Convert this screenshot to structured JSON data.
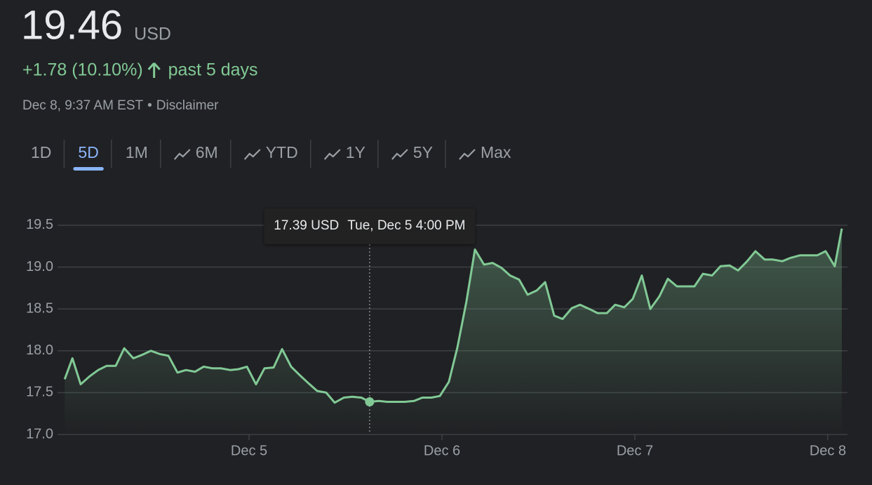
{
  "header": {
    "price": "19.46",
    "currency": "USD",
    "change": "+1.78 (10.10%)",
    "period": "past 5 days",
    "timestamp": "Dec 8, 9:37 AM EST",
    "separator": "•",
    "disclaimer": "Disclaimer"
  },
  "tabs": [
    {
      "label": "1D",
      "icon": false
    },
    {
      "label": "5D",
      "icon": false
    },
    {
      "label": "1M",
      "icon": false
    },
    {
      "label": "6M",
      "icon": true
    },
    {
      "label": "YTD",
      "icon": true
    },
    {
      "label": "1Y",
      "icon": true
    },
    {
      "label": "5Y",
      "icon": true
    },
    {
      "label": "Max",
      "icon": true
    }
  ],
  "active_tab": 1,
  "chart_data": {
    "type": "line",
    "color": "#81c995",
    "grid": true,
    "x": [
      4.044,
      4.084,
      4.127,
      4.171,
      4.218,
      4.262,
      4.309,
      4.353,
      4.4,
      4.444,
      4.491,
      4.538,
      4.582,
      4.629,
      4.673,
      4.72,
      4.764,
      4.811,
      4.855,
      4.902,
      4.945,
      4.989,
      5.036,
      5.08,
      5.127,
      5.171,
      5.218,
      5.262,
      5.309,
      5.353,
      5.4,
      5.444,
      5.491,
      5.535,
      5.582,
      5.625,
      5.673,
      5.716,
      5.764,
      5.807,
      5.855,
      5.898,
      5.945,
      5.989,
      6.036,
      6.08,
      6.127,
      6.171,
      6.218,
      6.262,
      6.309,
      6.353,
      6.4,
      6.444,
      6.491,
      6.535,
      6.582,
      6.625,
      6.673,
      6.716,
      6.764,
      6.807,
      6.855,
      6.898,
      6.945,
      6.989,
      7.036,
      7.08,
      7.127,
      7.171,
      7.218,
      7.262,
      7.309,
      7.353,
      7.4,
      7.444,
      7.491,
      7.535,
      7.582,
      7.625,
      7.673,
      7.716,
      7.764,
      7.807,
      7.855,
      7.898,
      7.945,
      7.989,
      8.036,
      8.073
    ],
    "values": [
      17.66,
      17.91,
      17.6,
      17.69,
      17.77,
      17.82,
      17.82,
      18.03,
      17.91,
      17.95,
      18.0,
      17.96,
      17.94,
      17.74,
      17.77,
      17.75,
      17.81,
      17.79,
      17.79,
      17.77,
      17.78,
      17.81,
      17.6,
      17.79,
      17.8,
      18.02,
      17.81,
      17.71,
      17.61,
      17.52,
      17.5,
      17.38,
      17.44,
      17.45,
      17.44,
      17.39,
      17.4,
      17.39,
      17.39,
      17.39,
      17.4,
      17.44,
      17.44,
      17.46,
      17.63,
      18.04,
      18.59,
      19.21,
      19.03,
      19.05,
      18.99,
      18.9,
      18.85,
      18.67,
      18.72,
      18.82,
      18.42,
      18.38,
      18.51,
      18.55,
      18.5,
      18.45,
      18.45,
      18.55,
      18.52,
      18.62,
      18.9,
      18.5,
      18.65,
      18.86,
      18.77,
      18.77,
      18.77,
      18.92,
      18.9,
      19.01,
      19.02,
      18.96,
      19.07,
      19.19,
      19.09,
      19.09,
      19.07,
      19.11,
      19.14,
      19.14,
      19.14,
      19.19,
      19.01,
      19.46
    ],
    "xlim": [
      4.007,
      8.102
    ],
    "ylim": [
      17.0,
      19.6
    ],
    "xticks": [
      {
        "value": 5,
        "label": "Dec 5"
      },
      {
        "value": 6,
        "label": "Dec 6"
      },
      {
        "value": 7,
        "label": "Dec 7"
      },
      {
        "value": 8,
        "label": "Dec 8"
      }
    ],
    "yticks": [
      {
        "value": 17,
        "label": "17.0"
      },
      17.5,
      {
        "value": 18,
        "label": "18.0"
      },
      18.5,
      {
        "value": 19,
        "label": "19.0"
      },
      19.5
    ],
    "tooltip": {
      "x": 5.625,
      "value": 17.39,
      "label": "17.39 USD",
      "date": "Tue, Dec 5 4:00 PM"
    }
  }
}
